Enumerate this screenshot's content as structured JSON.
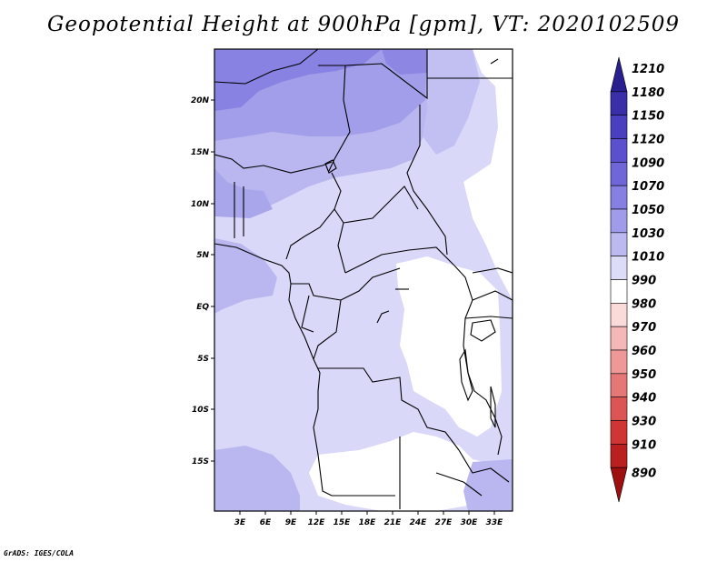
{
  "title": "Geopotential Height at 900hPa [gpm], VT: 2020102509",
  "footer": "GrADS: IGES/COLA",
  "map": {
    "lat_ticks": [
      "20N",
      "15N",
      "10N",
      "5N",
      "EQ",
      "5S",
      "10S",
      "15S"
    ],
    "lon_ticks": [
      "3E",
      "6E",
      "9E",
      "12E",
      "15E",
      "18E",
      "21E",
      "24E",
      "27E",
      "30E",
      "33E"
    ]
  },
  "colorbar": {
    "labels": [
      "1210",
      "1180",
      "1150",
      "1120",
      "1090",
      "1070",
      "1050",
      "1030",
      "1010",
      "990",
      "980",
      "970",
      "960",
      "950",
      "940",
      "930",
      "910",
      "890"
    ],
    "colors": [
      "#2a1f8f",
      "#3a2fa8",
      "#4a3fbe",
      "#5b51cf",
      "#6f66da",
      "#8680e2",
      "#a09ce9",
      "#bcb9f0",
      "#dcdbf8",
      "#ffffff",
      "#fbdada",
      "#f5b8b8",
      "#ee9898",
      "#e57777",
      "#dc5555",
      "#cf3535",
      "#bb2020",
      "#9e1010"
    ]
  },
  "chart_data": {
    "type": "heatmap",
    "title": "Geopotential Height at 900hPa [gpm], VT: 2020102509",
    "x_ticks": [
      "3E",
      "6E",
      "9E",
      "12E",
      "15E",
      "18E",
      "21E",
      "24E",
      "27E",
      "30E",
      "33E"
    ],
    "y_ticks": [
      "20N",
      "15N",
      "10N",
      "5N",
      "EQ",
      "5S",
      "10S",
      "15S"
    ],
    "levels": [
      890,
      910,
      930,
      940,
      950,
      960,
      970,
      980,
      990,
      1010,
      1030,
      1050,
      1070,
      1090,
      1120,
      1150,
      1180,
      1210
    ],
    "legend": "right"
  }
}
